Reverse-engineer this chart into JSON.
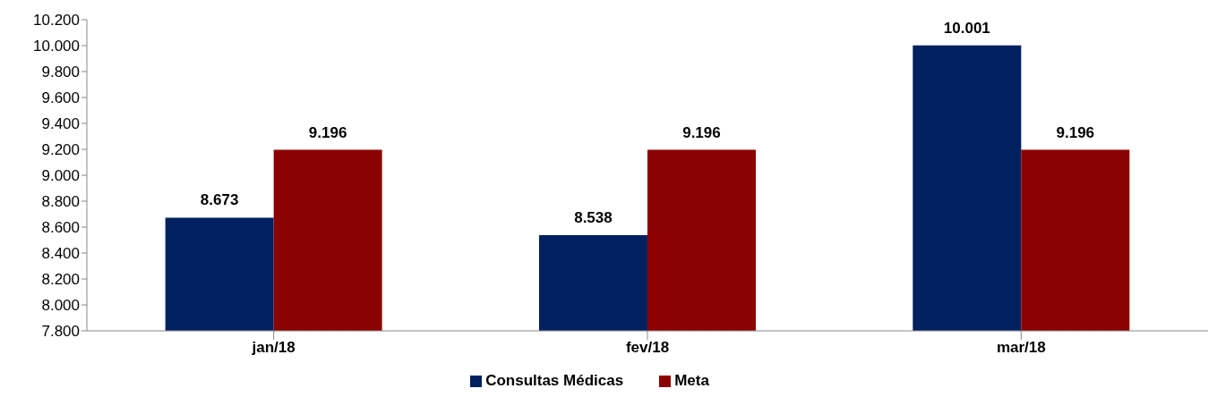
{
  "chart_data": {
    "type": "bar",
    "categories": [
      "jan/18",
      "fev/18",
      "mar/18"
    ],
    "series": [
      {
        "name": "Consultas Médicas",
        "color": "#002060",
        "values": [
          8673,
          8538,
          10001
        ],
        "value_labels": [
          "8.673",
          "8.538",
          "10.001"
        ]
      },
      {
        "name": "Meta",
        "color": "#8b0000",
        "values": [
          9196,
          9196,
          9196
        ],
        "value_labels": [
          "9.196",
          "9.196",
          "9.196"
        ]
      }
    ],
    "ylim": [
      7800,
      10200
    ],
    "yticks": [
      {
        "value": 7800,
        "label": "7.800"
      },
      {
        "value": 8000,
        "label": "8.000"
      },
      {
        "value": 8200,
        "label": "8.200"
      },
      {
        "value": 8400,
        "label": "8.400"
      },
      {
        "value": 8600,
        "label": "8.600"
      },
      {
        "value": 8800,
        "label": "8.800"
      },
      {
        "value": 9000,
        "label": "9.000"
      },
      {
        "value": 9200,
        "label": "9.200"
      },
      {
        "value": 9400,
        "label": "9.400"
      },
      {
        "value": 9600,
        "label": "9.600"
      },
      {
        "value": 9800,
        "label": "9.800"
      },
      {
        "value": 10000,
        "label": "10.000"
      },
      {
        "value": 10200,
        "label": "10.200"
      }
    ],
    "grid": false,
    "legend": "bottom"
  }
}
